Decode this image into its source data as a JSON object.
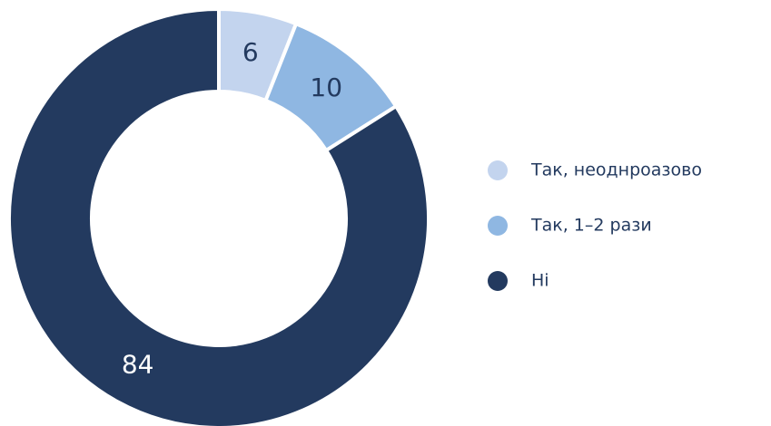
{
  "chart_data": {
    "type": "donut",
    "categories": [
      "Так, неоднроазово",
      "Так, 1–2 рази",
      "Ні"
    ],
    "values": [
      6,
      10,
      84
    ],
    "colors": [
      "#c3d4ee",
      "#8fb7e2",
      "#233a5f"
    ],
    "legend": "right"
  }
}
